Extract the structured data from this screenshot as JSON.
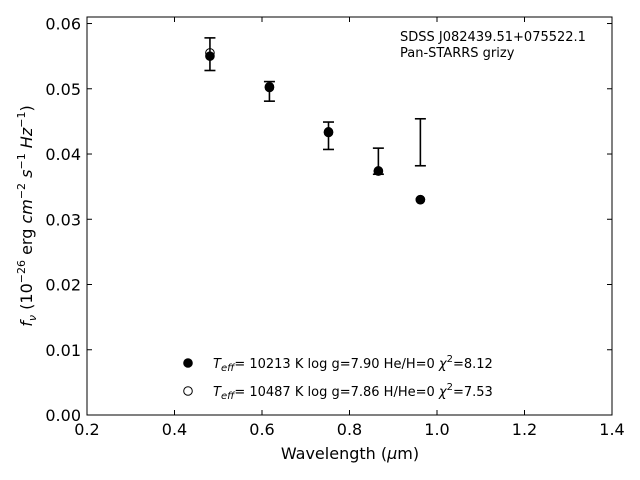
{
  "chart_data": {
    "type": "scatter",
    "annotation_lines": [
      "SDSS J082439.51+075522.1",
      "Pan-STARRS grizy"
    ],
    "xlabel": {
      "prefix": "Wavelength (",
      "symbol": "μ",
      "suffix": "m)"
    },
    "ylabel": "f_ν (10^-26 erg cm^-2 s^-1 Hz^-1)",
    "xlim": [
      0.2,
      1.4
    ],
    "ylim": [
      0.0,
      0.061
    ],
    "xticks": [
      0.2,
      0.4,
      0.6,
      0.8,
      1.0,
      1.2,
      1.4
    ],
    "xtick_labels": [
      "0.2",
      "0.4",
      "0.6",
      "0.8",
      "1.0",
      "1.2",
      "1.4"
    ],
    "yticks": [
      0.0,
      0.01,
      0.02,
      0.03,
      0.04,
      0.05,
      0.06
    ],
    "ytick_labels": [
      "0.00",
      "0.01",
      "0.02",
      "0.03",
      "0.04",
      "0.05",
      "0.06"
    ],
    "observed": [
      {
        "x": 0.481,
        "y": 0.0553,
        "yerr": 0.0025
      },
      {
        "x": 0.617,
        "y": 0.0496,
        "yerr": 0.0015
      },
      {
        "x": 0.752,
        "y": 0.0428,
        "yerr": 0.0021
      },
      {
        "x": 0.866,
        "y": 0.0389,
        "yerr": 0.002
      },
      {
        "x": 0.962,
        "y": 0.0418,
        "yerr": 0.0036
      }
    ],
    "series": [
      {
        "marker": "filled",
        "legend": {
          "teff": "10213 K",
          "logg": "7.90",
          "comp": "He/H=0",
          "chi2": "=8.12"
        },
        "points": [
          {
            "x": 0.481,
            "y": 0.055
          },
          {
            "x": 0.617,
            "y": 0.0502
          },
          {
            "x": 0.752,
            "y": 0.0434
          },
          {
            "x": 0.866,
            "y": 0.0374
          },
          {
            "x": 0.962,
            "y": 0.033
          }
        ]
      },
      {
        "marker": "open",
        "legend": {
          "teff": "10487 K",
          "logg": "7.86",
          "comp": "H/He=0",
          "chi2": "=7.53"
        },
        "points": [
          {
            "x": 0.481,
            "y": 0.0555
          },
          {
            "x": 0.617,
            "y": 0.0503
          },
          {
            "x": 0.752,
            "y": 0.0433
          },
          {
            "x": 0.866,
            "y": 0.0374
          },
          {
            "x": 0.962,
            "y": 0.033
          }
        ]
      }
    ],
    "legend_placement": "bottom-center",
    "grid": false
  }
}
